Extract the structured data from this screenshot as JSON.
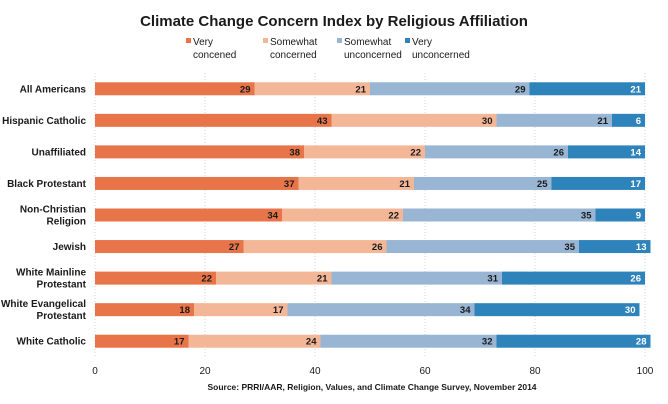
{
  "chart_data": {
    "type": "bar",
    "orientation": "horizontal",
    "stacked": true,
    "title": "Climate Change Concern Index by Religious Affiliation",
    "categories": [
      "All Americans",
      "Hispanic Catholic",
      "Unaffiliated",
      "Black Protestant",
      "Non-Christian Religion",
      "Jewish",
      "White Mainline Protestant",
      "White Evangelical Protestant",
      "White Catholic"
    ],
    "series": [
      {
        "name": "Very concened",
        "color": "#e8744a",
        "label_color": "#1a1a1a",
        "values": [
          29,
          43,
          38,
          37,
          34,
          27,
          22,
          18,
          17
        ]
      },
      {
        "name": "Somewhat concerned",
        "color": "#f3b797",
        "label_color": "#1a1a1a",
        "values": [
          21,
          30,
          22,
          21,
          22,
          26,
          21,
          17,
          24
        ]
      },
      {
        "name": "Somewhat unconcerned",
        "color": "#98b5d3",
        "label_color": "#1a1a1a",
        "values": [
          29,
          21,
          26,
          25,
          35,
          35,
          31,
          34,
          32
        ]
      },
      {
        "name": "Very unconcerned",
        "color": "#2f83bb",
        "label_color": "#ffffff",
        "values": [
          21,
          6,
          14,
          17,
          9,
          13,
          26,
          30,
          28
        ]
      }
    ],
    "xlim": [
      0,
      100
    ],
    "xticks": [
      0,
      20,
      40,
      60,
      80,
      100
    ],
    "grid": true,
    "legend_position": "top",
    "xlabel": "",
    "ylabel": ""
  },
  "source": "Source: PRRI/AAR, Religion, Values, and Climate Change Survey, November 2014"
}
